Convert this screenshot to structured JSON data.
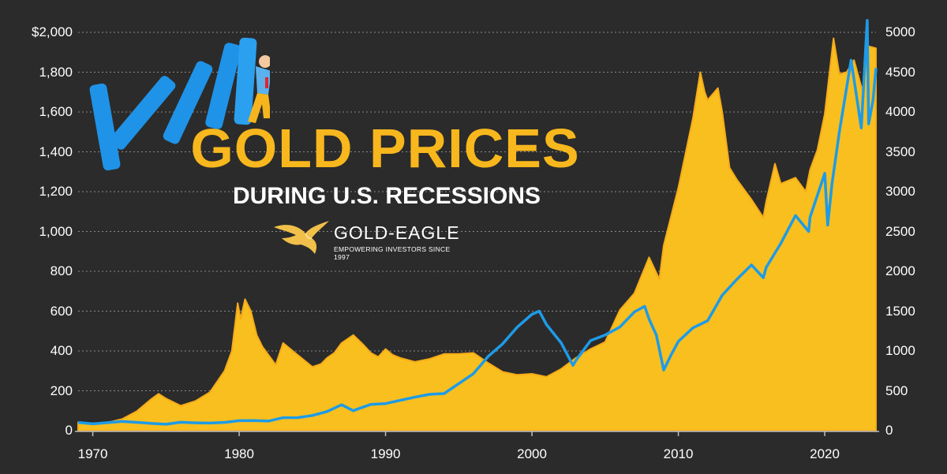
{
  "header": {
    "title": "GOLD PRICES",
    "subtitle": "DURING U.S. RECESSIONS"
  },
  "brand": {
    "name": "GOLD-EAGLE",
    "tagline": "EMPOWERING INVESTORS SINCE 1997"
  },
  "colors": {
    "background": "#2b2b2b",
    "gold_area": "#f9bf1f",
    "gold_edge": "#f6ab18",
    "index_line": "#1e9be6",
    "grid": "#8a8a8a",
    "text": "#ffffff",
    "title": "#f7b71d"
  },
  "chart_data": {
    "type": "area",
    "left_axis": {
      "ticks": [
        "$2,000",
        "1,800",
        "1,600",
        "1,400",
        "1,200",
        "1,000",
        "800",
        "600",
        "400",
        "200",
        "0"
      ],
      "ylim": [
        0,
        2000
      ]
    },
    "right_axis": {
      "ticks": [
        "5000",
        "4500",
        "4000",
        "3500",
        "3000",
        "2500",
        "2000",
        "1500",
        "1000",
        "500",
        "0"
      ],
      "ylim": [
        0,
        5000
      ]
    },
    "x_axis": {
      "ticks": [
        "1970",
        "1980",
        "1990",
        "2000",
        "2010",
        "2020"
      ],
      "xlim": [
        1969,
        2023.5
      ]
    },
    "grid": "horizontal dotted",
    "series": [
      {
        "axis": "left",
        "style": "area",
        "points": [
          [
            1969,
            41
          ],
          [
            1970,
            36
          ],
          [
            1971,
            40
          ],
          [
            1972,
            58
          ],
          [
            1973,
            97
          ],
          [
            1974,
            159
          ],
          [
            1974.5,
            185
          ],
          [
            1975,
            161
          ],
          [
            1976,
            125
          ],
          [
            1977,
            148
          ],
          [
            1978,
            193
          ],
          [
            1979,
            300
          ],
          [
            1979.5,
            400
          ],
          [
            1979.9,
            640
          ],
          [
            1980.1,
            560
          ],
          [
            1980.4,
            660
          ],
          [
            1980.8,
            600
          ],
          [
            1981.2,
            480
          ],
          [
            1981.6,
            420
          ],
          [
            1982,
            380
          ],
          [
            1982.5,
            330
          ],
          [
            1983,
            440
          ],
          [
            1983.5,
            410
          ],
          [
            1984,
            380
          ],
          [
            1984.5,
            350
          ],
          [
            1985,
            320
          ],
          [
            1985.6,
            335
          ],
          [
            1986,
            365
          ],
          [
            1986.5,
            390
          ],
          [
            1987,
            440
          ],
          [
            1987.8,
            480
          ],
          [
            1988.5,
            430
          ],
          [
            1989,
            390
          ],
          [
            1989.5,
            370
          ],
          [
            1990,
            410
          ],
          [
            1990.5,
            380
          ],
          [
            1991,
            365
          ],
          [
            1992,
            345
          ],
          [
            1993,
            360
          ],
          [
            1994,
            385
          ],
          [
            1995,
            385
          ],
          [
            1996,
            390
          ],
          [
            1997,
            340
          ],
          [
            1998,
            295
          ],
          [
            1999,
            280
          ],
          [
            2000,
            285
          ],
          [
            2001,
            270
          ],
          [
            2002,
            310
          ],
          [
            2003,
            365
          ],
          [
            2004,
            410
          ],
          [
            2005,
            445
          ],
          [
            2006,
            605
          ],
          [
            2007,
            690
          ],
          [
            2008,
            870
          ],
          [
            2008.7,
            760
          ],
          [
            2009,
            930
          ],
          [
            2010,
            1220
          ],
          [
            2011,
            1570
          ],
          [
            2011.5,
            1800
          ],
          [
            2011.8,
            1700
          ],
          [
            2012,
            1660
          ],
          [
            2012.7,
            1720
          ],
          [
            2013,
            1600
          ],
          [
            2013.5,
            1320
          ],
          [
            2014,
            1260
          ],
          [
            2015,
            1160
          ],
          [
            2015.8,
            1070
          ],
          [
            2016,
            1150
          ],
          [
            2016.6,
            1340
          ],
          [
            2017,
            1240
          ],
          [
            2018,
            1270
          ],
          [
            2018.7,
            1200
          ],
          [
            2019,
            1310
          ],
          [
            2019.5,
            1410
          ],
          [
            2020,
            1590
          ],
          [
            2020.6,
            1970
          ],
          [
            2021,
            1790
          ],
          [
            2021.5,
            1800
          ],
          [
            2022,
            1860
          ],
          [
            2022.6,
            1700
          ],
          [
            2023,
            1930
          ],
          [
            2023.5,
            1920
          ]
        ]
      },
      {
        "axis": "right",
        "style": "line",
        "points": [
          [
            1969,
            103
          ],
          [
            1970,
            85
          ],
          [
            1971,
            100
          ],
          [
            1972,
            115
          ],
          [
            1973,
            104
          ],
          [
            1974,
            90
          ],
          [
            1975,
            80
          ],
          [
            1976,
            105
          ],
          [
            1977,
            98
          ],
          [
            1978,
            95
          ],
          [
            1979,
            103
          ],
          [
            1980,
            125
          ],
          [
            1981,
            127
          ],
          [
            1982,
            120
          ],
          [
            1983,
            162
          ],
          [
            1984,
            163
          ],
          [
            1985,
            190
          ],
          [
            1986,
            240
          ],
          [
            1987,
            325
          ],
          [
            1987.8,
            250
          ],
          [
            1988,
            265
          ],
          [
            1989,
            330
          ],
          [
            1990,
            340
          ],
          [
            1991,
            380
          ],
          [
            1992,
            420
          ],
          [
            1993,
            455
          ],
          [
            1994,
            465
          ],
          [
            1995,
            590
          ],
          [
            1996,
            715
          ],
          [
            1997,
            930
          ],
          [
            1998,
            1090
          ],
          [
            1999,
            1300
          ],
          [
            2000,
            1460
          ],
          [
            2000.5,
            1500
          ],
          [
            2001,
            1330
          ],
          [
            2002,
            1100
          ],
          [
            2002.8,
            820
          ],
          [
            2003,
            880
          ],
          [
            2004,
            1130
          ],
          [
            2005,
            1200
          ],
          [
            2006,
            1300
          ],
          [
            2007,
            1490
          ],
          [
            2007.7,
            1560
          ],
          [
            2008,
            1400
          ],
          [
            2008.5,
            1200
          ],
          [
            2009,
            760
          ],
          [
            2009.5,
            950
          ],
          [
            2010,
            1120
          ],
          [
            2011,
            1290
          ],
          [
            2012,
            1380
          ],
          [
            2013,
            1700
          ],
          [
            2014,
            1900
          ],
          [
            2015,
            2080
          ],
          [
            2015.8,
            1920
          ],
          [
            2016,
            2050
          ],
          [
            2017,
            2350
          ],
          [
            2018,
            2700
          ],
          [
            2018.9,
            2500
          ],
          [
            2019,
            2680
          ],
          [
            2020,
            3230
          ],
          [
            2020.2,
            2580
          ],
          [
            2020.5,
            3100
          ],
          [
            2021,
            3750
          ],
          [
            2021.8,
            4650
          ],
          [
            2022.5,
            3800
          ],
          [
            2022.9,
            5150
          ],
          [
            2023,
            3850
          ],
          [
            2023.3,
            4150
          ],
          [
            2023.5,
            4550
          ]
        ]
      }
    ]
  }
}
